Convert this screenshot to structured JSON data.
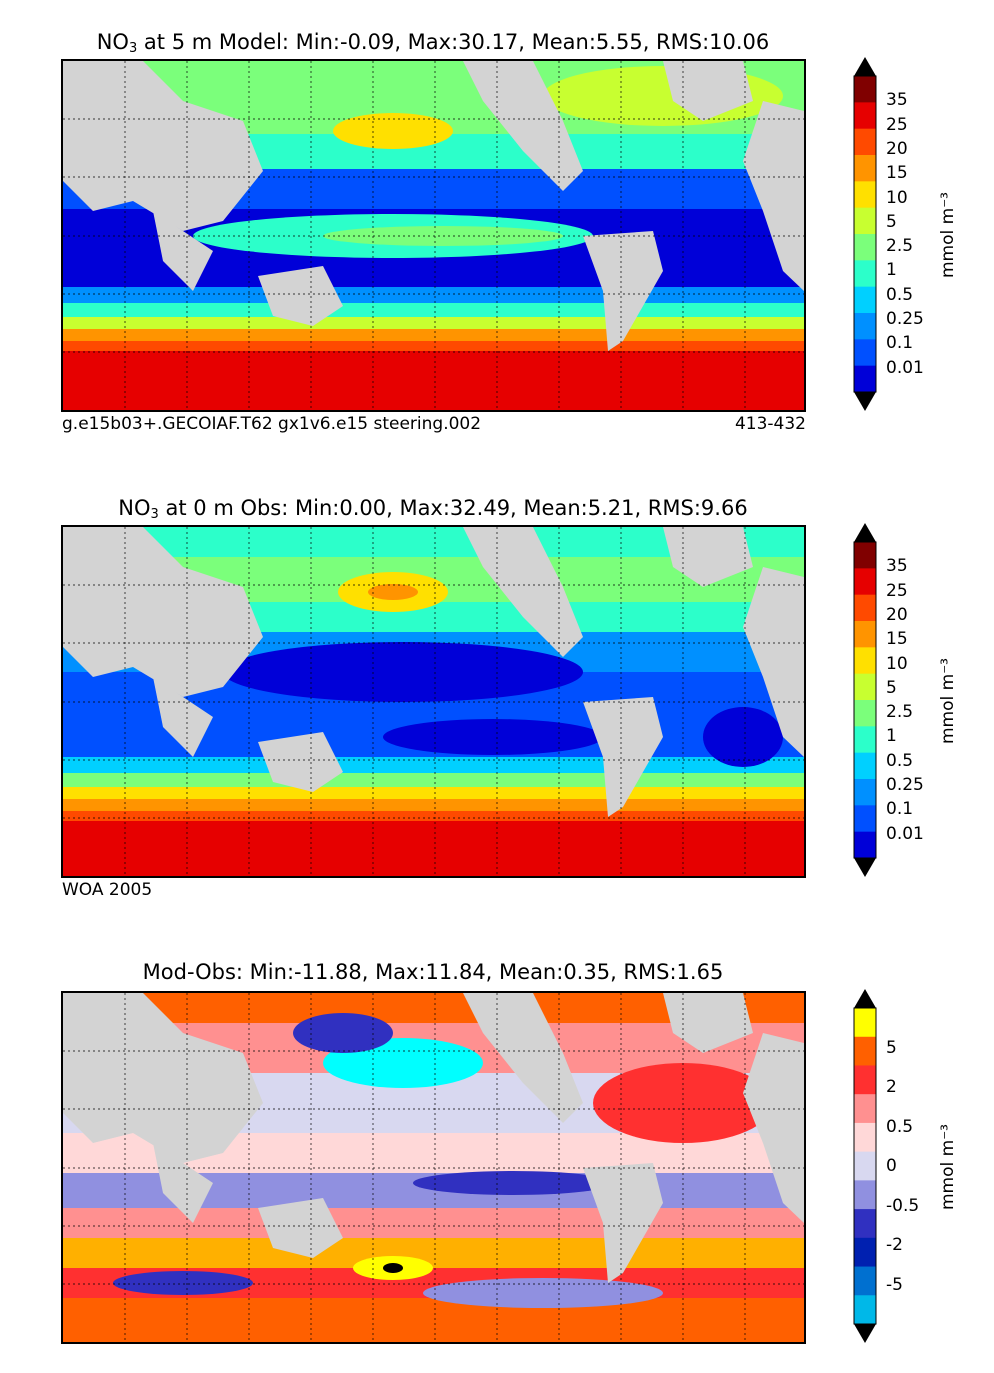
{
  "panels": [
    {
      "title_species": "NO",
      "title_sub": "3",
      "title_rest": " at 5 m Model: Min:-0.09, Max:30.17, Mean:5.55, RMS:10.06",
      "footer_left": "g.e15b03+.GECOIAF.T62 gx1v6.e15 steering.002",
      "footer_right": "413-432",
      "colorbar_label": "mmol m⁻³",
      "colorbar_ticks": [
        "35",
        "25",
        "20",
        "15",
        "10",
        "5",
        "2.5",
        "1",
        "0.5",
        "0.25",
        "0.1",
        "0.01"
      ],
      "colorbar_colors": [
        "#800000",
        "#b80000",
        "#e60000",
        "#ff4a00",
        "#ff9400",
        "#ffe000",
        "#c8ff30",
        "#7bff7b",
        "#2cffca",
        "#00d0ff",
        "#0090ff",
        "#0050ff",
        "#0000d8",
        "#000080"
      ]
    },
    {
      "title_species": "NO",
      "title_sub": "3",
      "title_rest": " at 0 m Obs: Min:0.00, Max:32.49, Mean:5.21, RMS:9.66",
      "footer_left": "WOA 2005",
      "footer_right": "",
      "colorbar_label": "mmol m⁻³",
      "colorbar_ticks": [
        "35",
        "25",
        "20",
        "15",
        "10",
        "5",
        "2.5",
        "1",
        "0.5",
        "0.25",
        "0.1",
        "0.01"
      ],
      "colorbar_colors": [
        "#800000",
        "#b80000",
        "#e60000",
        "#ff4a00",
        "#ff9400",
        "#ffe000",
        "#c8ff30",
        "#7bff7b",
        "#2cffca",
        "#00d0ff",
        "#0090ff",
        "#0050ff",
        "#0000d8",
        "#000080"
      ]
    },
    {
      "title_species": "",
      "title_sub": "",
      "title_rest": "Mod-Obs: Min:-11.88, Max:11.84, Mean:0.35, RMS:1.65",
      "footer_left": "",
      "footer_right": "",
      "colorbar_label": "mmol m⁻³",
      "colorbar_ticks": [
        "5",
        "2",
        "0.5",
        "0",
        "-0.5",
        "-2",
        "-5"
      ],
      "colorbar_colors": [
        "#ffff00",
        "#ffb000",
        "#ff6000",
        "#ff3030",
        "#ff9090",
        "#ffd8d8",
        "#d8d8f0",
        "#9090e0",
        "#3030c0",
        "#0020b0",
        "#0070d0",
        "#00b8e8",
        "#00ffff"
      ]
    }
  ],
  "chart_data": [
    {
      "type": "heatmap",
      "title": "NO3 at 5 m Model: Min:-0.09, Max:30.17, Mean:5.55, RMS:10.06",
      "units": "mmol m-3",
      "stats": {
        "min": -0.09,
        "max": 30.17,
        "mean": 5.55,
        "rms": 10.06
      },
      "colorbar_levels": [
        0.01,
        0.1,
        0.25,
        0.5,
        1,
        2.5,
        5,
        10,
        15,
        20,
        25,
        35
      ],
      "grid": true
    },
    {
      "type": "heatmap",
      "title": "NO3 at 0 m Obs: Min:0.00, Max:32.49, Mean:5.21, RMS:9.66",
      "units": "mmol m-3",
      "stats": {
        "min": 0.0,
        "max": 32.49,
        "mean": 5.21,
        "rms": 9.66
      },
      "colorbar_levels": [
        0.01,
        0.1,
        0.25,
        0.5,
        1,
        2.5,
        5,
        10,
        15,
        20,
        25,
        35
      ],
      "grid": true
    },
    {
      "type": "heatmap",
      "title": "Mod-Obs: Min:-11.88, Max:11.84, Mean:0.35, RMS:1.65",
      "units": "mmol m-3",
      "stats": {
        "min": -11.88,
        "max": 11.84,
        "mean": 0.35,
        "rms": 1.65
      },
      "colorbar_levels": [
        -5,
        -2,
        -0.5,
        0,
        0.5,
        2,
        5
      ],
      "grid": true
    }
  ]
}
